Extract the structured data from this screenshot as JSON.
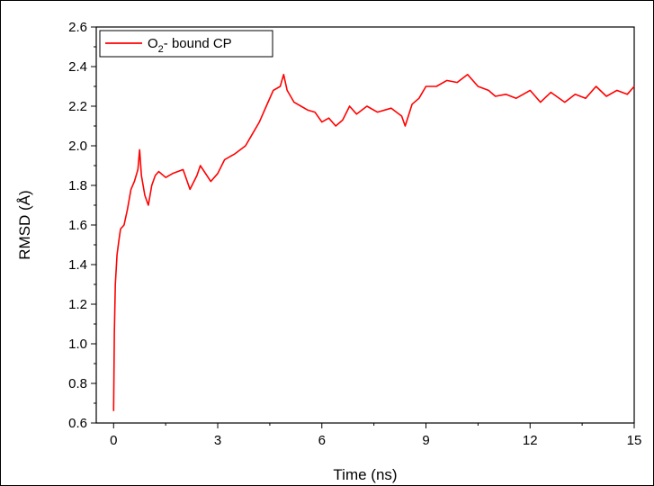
{
  "chart_data": {
    "type": "line",
    "xlabel": "Time (ns)",
    "ylabel": "RMSD (Å)",
    "xlim": [
      -0.5,
      15
    ],
    "ylim": [
      0.6,
      2.6
    ],
    "xticks": [
      0,
      3,
      6,
      9,
      12,
      15
    ],
    "xtick_labels": [
      "0",
      "3",
      "6",
      "9",
      "12",
      "15"
    ],
    "yticks": [
      0.6,
      0.8,
      1.0,
      1.2,
      1.4,
      1.6,
      1.8,
      2.0,
      2.2,
      2.4,
      2.6
    ],
    "ytick_labels": [
      "0.6",
      "0.8",
      "1.0",
      "1.2",
      "1.4",
      "1.6",
      "1.8",
      "2.0",
      "2.2",
      "2.4",
      "2.6"
    ],
    "grid": false,
    "legend_position": "top-left",
    "series": [
      {
        "name": "O2- bound CP",
        "legend_main": "O",
        "legend_sub": "2",
        "legend_rest": "- bound CP",
        "color": "#ff0000",
        "x": [
          0,
          0.02,
          0.05,
          0.1,
          0.15,
          0.2,
          0.3,
          0.4,
          0.5,
          0.6,
          0.7,
          0.75,
          0.8,
          0.9,
          1.0,
          1.1,
          1.2,
          1.3,
          1.5,
          1.7,
          2.0,
          2.2,
          2.4,
          2.5,
          2.8,
          3.0,
          3.2,
          3.5,
          3.8,
          4.0,
          4.2,
          4.4,
          4.6,
          4.8,
          4.9,
          5.0,
          5.2,
          5.4,
          5.6,
          5.8,
          6.0,
          6.2,
          6.4,
          6.6,
          6.8,
          7.0,
          7.3,
          7.6,
          8.0,
          8.3,
          8.4,
          8.6,
          8.8,
          9.0,
          9.3,
          9.6,
          9.9,
          10.2,
          10.5,
          10.8,
          11.0,
          11.3,
          11.6,
          12.0,
          12.3,
          12.6,
          13.0,
          13.3,
          13.6,
          13.9,
          14.2,
          14.5,
          14.8,
          15.0
        ],
        "y": [
          0.66,
          1.05,
          1.3,
          1.45,
          1.52,
          1.58,
          1.6,
          1.68,
          1.78,
          1.82,
          1.88,
          1.98,
          1.85,
          1.75,
          1.7,
          1.8,
          1.85,
          1.87,
          1.84,
          1.86,
          1.88,
          1.78,
          1.85,
          1.9,
          1.82,
          1.86,
          1.93,
          1.96,
          2.0,
          2.06,
          2.12,
          2.2,
          2.28,
          2.3,
          2.36,
          2.28,
          2.22,
          2.2,
          2.18,
          2.17,
          2.12,
          2.14,
          2.1,
          2.13,
          2.2,
          2.16,
          2.2,
          2.17,
          2.19,
          2.15,
          2.1,
          2.21,
          2.24,
          2.3,
          2.3,
          2.33,
          2.32,
          2.36,
          2.3,
          2.28,
          2.25,
          2.26,
          2.24,
          2.28,
          2.22,
          2.27,
          2.22,
          2.26,
          2.24,
          2.3,
          2.25,
          2.28,
          2.26,
          2.3
        ]
      }
    ]
  }
}
